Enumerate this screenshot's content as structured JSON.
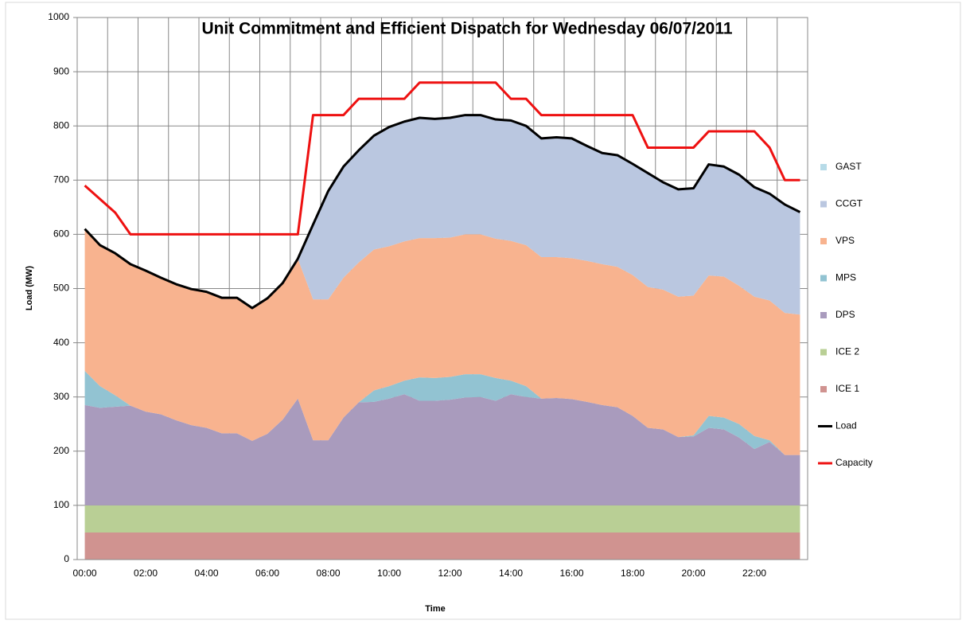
{
  "chart_data": {
    "type": "stacked_area",
    "title": "Unit Commitment and Efficient Dispatch for Wednesday 06/07/2011",
    "x_label": "Time",
    "y_label": "Load (MW)",
    "categories": [
      "00:00",
      null,
      null,
      null,
      "02:00",
      null,
      null,
      null,
      "04:00",
      null,
      null,
      null,
      "06:00",
      null,
      null,
      null,
      "08:00",
      null,
      null,
      null,
      "10:00",
      null,
      null,
      null,
      "12:00",
      null,
      null,
      null,
      "14:00",
      null,
      null,
      null,
      "16:00",
      null,
      null,
      null,
      "18:00",
      null,
      null,
      null,
      "20:00",
      null,
      null,
      null,
      "22:00",
      null,
      null,
      null
    ],
    "ylim": [
      0,
      1000
    ],
    "yticks": [
      0,
      100,
      200,
      300,
      400,
      500,
      600,
      700,
      800,
      900,
      1000
    ],
    "grid": true,
    "legend": "right",
    "series": [
      {
        "name": "ICE 1",
        "kind": "area",
        "color": "#d09390",
        "values": [
          50,
          50,
          50,
          50,
          50,
          50,
          50,
          50,
          50,
          50,
          50,
          50,
          50,
          50,
          50,
          50,
          50,
          50,
          50,
          50,
          50,
          50,
          50,
          50,
          50,
          50,
          50,
          50,
          50,
          50,
          50,
          50,
          50,
          50,
          50,
          50,
          50,
          50,
          50,
          50,
          50,
          50,
          50,
          50,
          50,
          50,
          50,
          50
        ]
      },
      {
        "name": "ICE 2",
        "kind": "area",
        "color": "#b9cf95",
        "values": [
          50,
          50,
          50,
          50,
          50,
          50,
          50,
          50,
          50,
          50,
          50,
          50,
          50,
          50,
          50,
          50,
          50,
          50,
          50,
          50,
          50,
          50,
          50,
          50,
          50,
          50,
          50,
          50,
          50,
          50,
          50,
          50,
          50,
          50,
          50,
          50,
          50,
          50,
          50,
          50,
          50,
          50,
          50,
          50,
          50,
          50,
          50,
          50
        ]
      },
      {
        "name": "DPS",
        "kind": "area",
        "color": "#a99bbd",
        "values": [
          185,
          180,
          182,
          184,
          173,
          168,
          157,
          148,
          143,
          133,
          133,
          119,
          132,
          158,
          197,
          120,
          120,
          162,
          190,
          191,
          197,
          205,
          193,
          193,
          195,
          199,
          200,
          193,
          205,
          200,
          197,
          198,
          196,
          191,
          185,
          181,
          165,
          143,
          140,
          126,
          127,
          143,
          140,
          125,
          104,
          117,
          93,
          93
        ]
      },
      {
        "name": "MPS",
        "kind": "area",
        "color": "#92c3d2",
        "values": [
          63,
          40,
          21,
          0,
          0,
          0,
          0,
          0,
          0,
          0,
          0,
          0,
          0,
          0,
          0,
          0,
          0,
          0,
          0,
          21,
          23,
          25,
          43,
          42,
          42,
          43,
          42,
          42,
          25,
          20,
          0,
          0,
          0,
          0,
          0,
          0,
          0,
          0,
          0,
          0,
          2,
          22,
          22,
          25,
          24,
          3,
          0,
          0
        ]
      },
      {
        "name": "VPS",
        "kind": "area",
        "color": "#f8b38f",
        "values": [
          262,
          260,
          262,
          261,
          260,
          252,
          251,
          251,
          251,
          250,
          250,
          245,
          250,
          252,
          258,
          260,
          260,
          258,
          258,
          260,
          258,
          257,
          257,
          258,
          257,
          258,
          258,
          257,
          258,
          260,
          261,
          260,
          260,
          260,
          260,
          259,
          260,
          260,
          258,
          259,
          258,
          259,
          260,
          255,
          257,
          258,
          262,
          259
        ]
      },
      {
        "name": "CCGT",
        "kind": "area",
        "color": "#bac7e0",
        "values": [
          0,
          0,
          0,
          0,
          0,
          0,
          0,
          0,
          0,
          0,
          0,
          0,
          0,
          0,
          0,
          138,
          200,
          205,
          207,
          210,
          220,
          221,
          222,
          220,
          221,
          220,
          220,
          220,
          222,
          220,
          219,
          221,
          221,
          212,
          205,
          206,
          205,
          210,
          198,
          198,
          198,
          205,
          203,
          205,
          202,
          197,
          200,
          189
        ]
      },
      {
        "name": "GAST",
        "kind": "area",
        "color": "#b7dbe8",
        "values": [
          0,
          0,
          0,
          0,
          0,
          0,
          0,
          0,
          0,
          0,
          0,
          0,
          0,
          0,
          0,
          0,
          0,
          0,
          0,
          0,
          0,
          0,
          0,
          0,
          0,
          0,
          0,
          0,
          0,
          0,
          0,
          0,
          0,
          0,
          0,
          0,
          0,
          0,
          0,
          0,
          0,
          0,
          0,
          0,
          0,
          0,
          0,
          0
        ]
      },
      {
        "name": "Load",
        "kind": "line",
        "color": "#000000",
        "values": [
          610,
          580,
          565,
          545,
          533,
          520,
          508,
          499,
          494,
          483,
          483,
          464,
          482,
          510,
          555,
          618,
          680,
          725,
          755,
          782,
          798,
          808,
          815,
          813,
          815,
          820,
          820,
          812,
          810,
          800,
          777,
          779,
          777,
          763,
          750,
          746,
          730,
          713,
          696,
          683,
          685,
          729,
          725,
          710,
          687,
          675,
          655,
          641
        ]
      },
      {
        "name": "Capacity",
        "kind": "line",
        "color": "#ee1111",
        "values": [
          690,
          665,
          640,
          600,
          600,
          600,
          600,
          600,
          600,
          600,
          600,
          600,
          600,
          600,
          600,
          820,
          820,
          820,
          850,
          850,
          850,
          850,
          880,
          880,
          880,
          880,
          880,
          880,
          850,
          850,
          820,
          820,
          820,
          820,
          820,
          820,
          820,
          760,
          760,
          760,
          760,
          790,
          790,
          790,
          790,
          760,
          700,
          700
        ]
      }
    ]
  }
}
